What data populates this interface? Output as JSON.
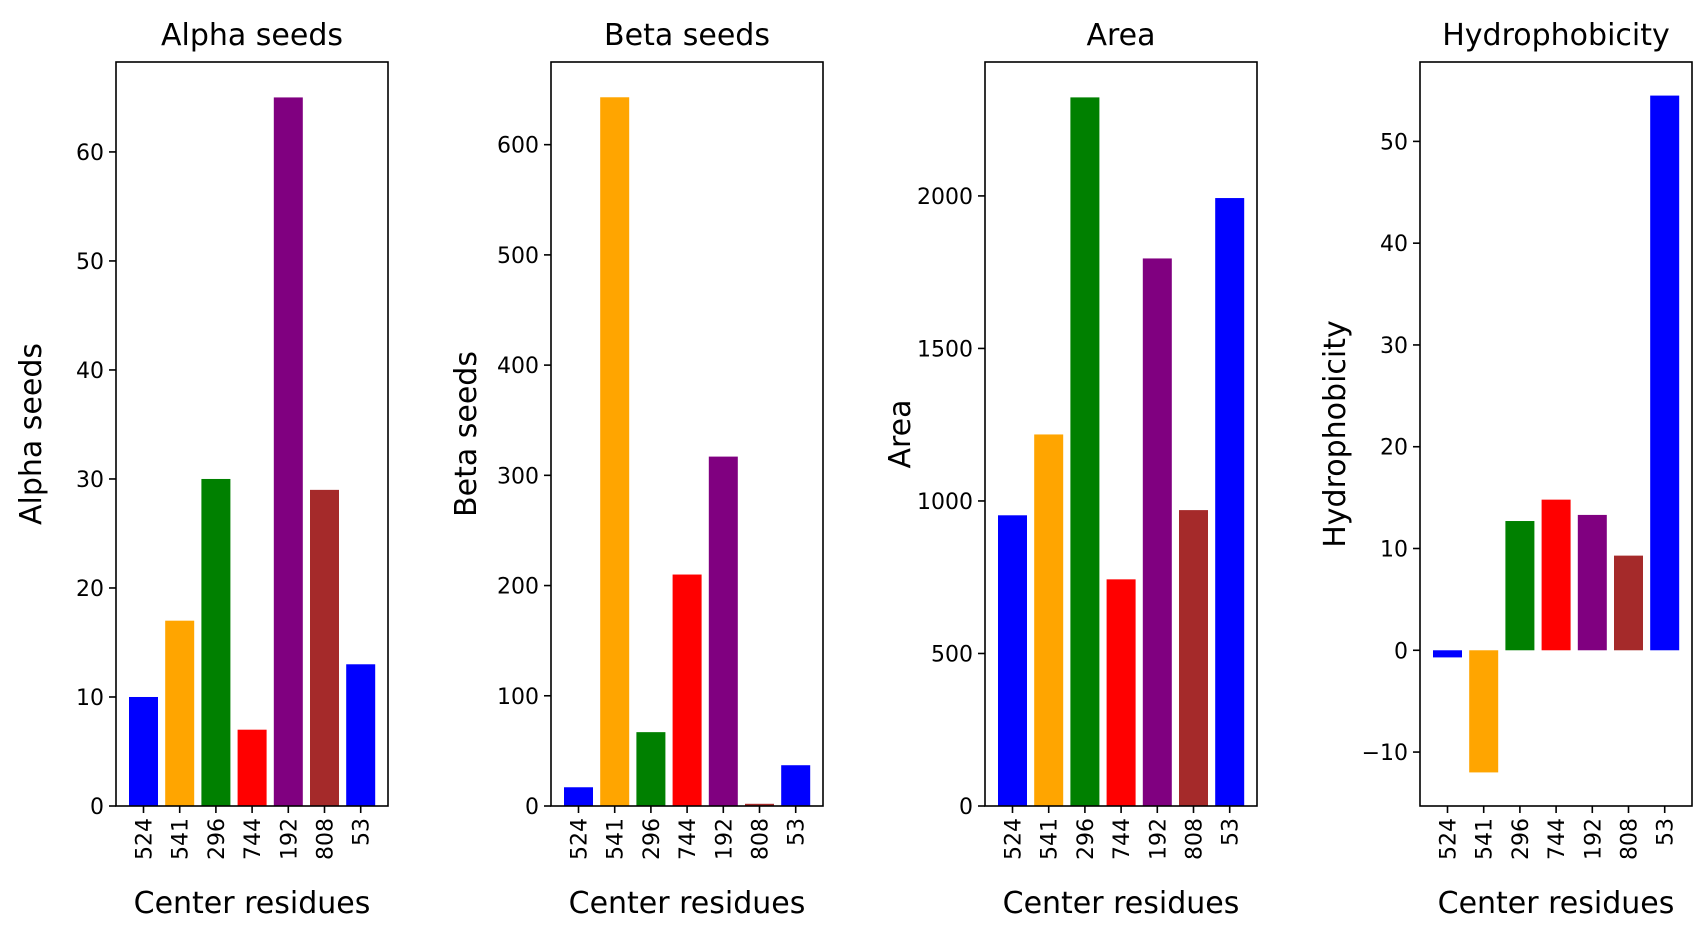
{
  "chart_data": [
    {
      "type": "bar",
      "title": "Alpha seeds",
      "xlabel": "Center residues",
      "ylabel": "Alpha seeds",
      "categories": [
        "524",
        "541",
        "296",
        "744",
        "192",
        "808",
        "53"
      ],
      "values": [
        10,
        17,
        30,
        7,
        65,
        29,
        13
      ],
      "colors": [
        "#0000ff",
        "#ffa500",
        "#008000",
        "#ff0000",
        "#800080",
        "#a52a2a",
        "#0000ff"
      ],
      "ylim": [
        0,
        68.25
      ],
      "yticks": [
        0,
        10,
        20,
        30,
        40,
        50,
        60
      ],
      "grid": false
    },
    {
      "type": "bar",
      "title": "Beta seeds",
      "xlabel": "Center residues",
      "ylabel": "Beta seeds",
      "categories": [
        "524",
        "541",
        "296",
        "744",
        "192",
        "808",
        "53"
      ],
      "values": [
        17,
        643,
        67,
        210,
        317,
        2,
        37
      ],
      "colors": [
        "#0000ff",
        "#ffa500",
        "#008000",
        "#ff0000",
        "#800080",
        "#a52a2a",
        "#0000ff"
      ],
      "ylim": [
        0,
        675
      ],
      "yticks": [
        0,
        100,
        200,
        300,
        400,
        500,
        600
      ],
      "grid": false
    },
    {
      "type": "bar",
      "title": "Area",
      "xlabel": "Center residues",
      "ylabel": "Area",
      "categories": [
        "524",
        "541",
        "296",
        "744",
        "192",
        "808",
        "53"
      ],
      "values": [
        953,
        1218,
        2323,
        743,
        1795,
        970,
        1993
      ],
      "colors": [
        "#0000ff",
        "#ffa500",
        "#008000",
        "#ff0000",
        "#800080",
        "#a52a2a",
        "#0000ff"
      ],
      "ylim": [
        0,
        2439
      ],
      "yticks": [
        0,
        500,
        1000,
        1500,
        2000
      ],
      "grid": false
    },
    {
      "type": "bar",
      "title": "Hydrophobicity",
      "xlabel": "Center residues",
      "ylabel": "Hydrophobicity",
      "categories": [
        "524",
        "541",
        "296",
        "744",
        "192",
        "808",
        "53"
      ],
      "values": [
        -0.7,
        -12.0,
        12.7,
        14.8,
        13.3,
        9.3,
        54.5
      ],
      "colors": [
        "#0000ff",
        "#ffa500",
        "#008000",
        "#ff0000",
        "#800080",
        "#a52a2a",
        "#0000ff"
      ],
      "ylim": [
        -15.3,
        57.8
      ],
      "yticks": [
        -10,
        0,
        10,
        20,
        30,
        40,
        50
      ],
      "grid": false
    }
  ]
}
